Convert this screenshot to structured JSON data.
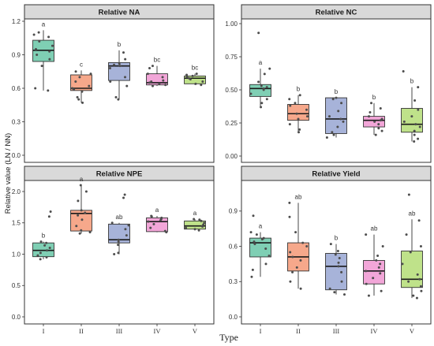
{
  "chart_data": [
    {
      "type": "box",
      "title": "Relative NA",
      "categories": [
        "I",
        "II",
        "III",
        "IV",
        "V"
      ],
      "ylim": [
        0,
        1.2
      ],
      "yticks": [
        0.0,
        0.3,
        0.6,
        0.9,
        1.2
      ],
      "ytick_labels": [
        "0.0",
        "0.3",
        "0.6",
        "0.9",
        "1.2"
      ],
      "series": [
        {
          "category": "I",
          "min": 0.58,
          "q1": 0.84,
          "median": 0.94,
          "q3": 1.03,
          "max": 1.12,
          "letter": "a",
          "points": [
            0.58,
            0.6,
            0.8,
            0.86,
            0.9,
            0.93,
            0.95,
            0.98,
            1.02,
            1.06,
            1.08,
            1.1
          ]
        },
        {
          "category": "II",
          "min": 0.47,
          "q1": 0.58,
          "median": 0.6,
          "q3": 0.72,
          "max": 0.76,
          "letter": "c",
          "points": [
            0.47,
            0.5,
            0.52,
            0.57,
            0.59,
            0.6,
            0.62,
            0.66,
            0.7,
            0.73,
            0.75
          ]
        },
        {
          "category": "III",
          "min": 0.5,
          "q1": 0.67,
          "median": 0.8,
          "q3": 0.83,
          "max": 0.94,
          "letter": "b",
          "points": [
            0.5,
            0.52,
            0.62,
            0.66,
            0.7,
            0.78,
            0.8,
            0.81,
            0.82,
            0.86,
            0.92
          ]
        },
        {
          "category": "IV",
          "min": 0.62,
          "q1": 0.63,
          "median": 0.65,
          "q3": 0.73,
          "max": 0.8,
          "letter": "bc",
          "points": [
            0.62,
            0.63,
            0.64,
            0.65,
            0.66,
            0.67,
            0.7,
            0.73,
            0.78,
            0.8
          ]
        },
        {
          "category": "V",
          "min": 0.63,
          "q1": 0.64,
          "median": 0.69,
          "q3": 0.71,
          "max": 0.73,
          "letter": "bc",
          "points": [
            0.63,
            0.64,
            0.66,
            0.68,
            0.69,
            0.7,
            0.71,
            0.72,
            0.73
          ]
        }
      ]
    },
    {
      "type": "box",
      "title": "Relative NC",
      "categories": [
        "I",
        "II",
        "III",
        "IV",
        "V"
      ],
      "ylim": [
        0,
        1.0
      ],
      "yticks": [
        0.0,
        0.25,
        0.5,
        0.75,
        1.0
      ],
      "ytick_labels": [
        "0.00",
        "0.25",
        "0.50",
        "0.75",
        "1.00"
      ],
      "series": [
        {
          "category": "I",
          "min": 0.37,
          "q1": 0.45,
          "median": 0.51,
          "q3": 0.54,
          "max": 0.66,
          "letter": "a",
          "points": [
            0.37,
            0.4,
            0.43,
            0.47,
            0.5,
            0.51,
            0.52,
            0.53,
            0.56,
            0.62,
            0.66,
            0.93
          ]
        },
        {
          "category": "II",
          "min": 0.18,
          "q1": 0.27,
          "median": 0.32,
          "q3": 0.39,
          "max": 0.46,
          "letter": "b",
          "points": [
            0.18,
            0.2,
            0.24,
            0.28,
            0.3,
            0.32,
            0.35,
            0.38,
            0.4,
            0.43,
            0.46
          ]
        },
        {
          "category": "III",
          "min": 0.14,
          "q1": 0.17,
          "median": 0.28,
          "q3": 0.44,
          "max": 0.44,
          "letter": "b",
          "points": [
            0.14,
            0.16,
            0.18,
            0.22,
            0.26,
            0.28,
            0.3,
            0.34,
            0.4,
            0.43,
            0.44
          ]
        },
        {
          "category": "IV",
          "min": 0.16,
          "q1": 0.22,
          "median": 0.27,
          "q3": 0.3,
          "max": 0.4,
          "letter": "b",
          "points": [
            0.16,
            0.19,
            0.21,
            0.24,
            0.26,
            0.27,
            0.28,
            0.3,
            0.33,
            0.36,
            0.4
          ]
        },
        {
          "category": "V",
          "min": 0.11,
          "q1": 0.18,
          "median": 0.24,
          "q3": 0.36,
          "max": 0.52,
          "letter": "b",
          "points": [
            0.11,
            0.13,
            0.16,
            0.19,
            0.22,
            0.24,
            0.26,
            0.3,
            0.35,
            0.42,
            0.52,
            0.64
          ]
        }
      ]
    },
    {
      "type": "box",
      "title": "Relative NPE",
      "categories": [
        "I",
        "II",
        "III",
        "IV",
        "V"
      ],
      "ylim": [
        0,
        2.0
      ],
      "yticks": [
        0.0,
        0.5,
        1.0,
        1.5,
        2.0
      ],
      "ytick_labels": [
        "0.0",
        "0.5",
        "1.0",
        "1.5",
        "2.0"
      ],
      "series": [
        {
          "category": "I",
          "min": 0.92,
          "q1": 0.96,
          "median": 1.06,
          "q3": 1.18,
          "max": 1.2,
          "letter": "b",
          "points": [
            0.92,
            0.95,
            0.98,
            1.02,
            1.06,
            1.1,
            1.14,
            1.18,
            1.2,
            1.6,
            1.68
          ]
        },
        {
          "category": "II",
          "min": 1.33,
          "q1": 1.37,
          "median": 1.65,
          "q3": 1.7,
          "max": 2.1,
          "letter": "a",
          "points": [
            1.33,
            1.35,
            1.38,
            1.45,
            1.55,
            1.62,
            1.66,
            1.7,
            1.85,
            2.0,
            2.1
          ]
        },
        {
          "category": "III",
          "min": 1.0,
          "q1": 1.18,
          "median": 1.23,
          "q3": 1.48,
          "max": 1.5,
          "letter": "ab",
          "points": [
            1.0,
            1.02,
            1.15,
            1.2,
            1.23,
            1.3,
            1.4,
            1.46,
            1.5,
            1.9,
            1.95
          ]
        },
        {
          "category": "IV",
          "min": 1.35,
          "q1": 1.36,
          "median": 1.52,
          "q3": 1.58,
          "max": 1.61,
          "letter": "a",
          "points": [
            1.35,
            1.37,
            1.42,
            1.48,
            1.52,
            1.54,
            1.56,
            1.58,
            1.6,
            1.61
          ]
        },
        {
          "category": "V",
          "min": 1.38,
          "q1": 1.4,
          "median": 1.45,
          "q3": 1.53,
          "max": 1.56,
          "letter": "a",
          "points": [
            1.38,
            1.4,
            1.42,
            1.44,
            1.45,
            1.47,
            1.5,
            1.53,
            1.55,
            1.56
          ]
        }
      ]
    },
    {
      "type": "box",
      "title": "Relative Yield",
      "categories": [
        "I",
        "II",
        "III",
        "IV",
        "V"
      ],
      "ylim": [
        0,
        1.1
      ],
      "yticks": [
        0.0,
        0.3,
        0.6,
        0.9
      ],
      "ytick_labels": [
        "0.0",
        "0.3",
        "0.6",
        "0.9"
      ],
      "series": [
        {
          "category": "I",
          "min": 0.34,
          "q1": 0.51,
          "median": 0.63,
          "q3": 0.67,
          "max": 0.72,
          "letter": "a",
          "points": [
            0.34,
            0.4,
            0.45,
            0.52,
            0.58,
            0.62,
            0.64,
            0.66,
            0.67,
            0.7,
            0.72,
            0.86
          ]
        },
        {
          "category": "II",
          "min": 0.24,
          "q1": 0.39,
          "median": 0.51,
          "q3": 0.63,
          "max": 0.97,
          "letter": "ab",
          "points": [
            0.24,
            0.3,
            0.38,
            0.42,
            0.48,
            0.51,
            0.55,
            0.6,
            0.63,
            0.72,
            0.85,
            0.97
          ]
        },
        {
          "category": "III",
          "min": 0.19,
          "q1": 0.23,
          "median": 0.43,
          "q3": 0.54,
          "max": 0.62,
          "letter": "b",
          "points": [
            0.19,
            0.21,
            0.24,
            0.3,
            0.38,
            0.43,
            0.46,
            0.5,
            0.53,
            0.56,
            0.62
          ]
        },
        {
          "category": "IV",
          "min": 0.18,
          "q1": 0.28,
          "median": 0.39,
          "q3": 0.48,
          "max": 0.7,
          "letter": "ab",
          "points": [
            0.18,
            0.22,
            0.28,
            0.33,
            0.37,
            0.39,
            0.42,
            0.45,
            0.48,
            0.52,
            0.6,
            0.7
          ]
        },
        {
          "category": "V",
          "min": 0.16,
          "q1": 0.25,
          "median": 0.32,
          "q3": 0.56,
          "max": 0.83,
          "letter": "ab",
          "points": [
            0.16,
            0.18,
            0.22,
            0.26,
            0.3,
            0.32,
            0.36,
            0.45,
            0.55,
            0.6,
            0.7,
            0.82,
            1.04
          ]
        }
      ]
    }
  ],
  "ylabel": "Relative value (LN / NN)",
  "xlabel": "Type",
  "colors": [
    "#7fcfb4",
    "#f6a88b",
    "#a7b3d9",
    "#f2a6d8",
    "#bfe28a"
  ]
}
